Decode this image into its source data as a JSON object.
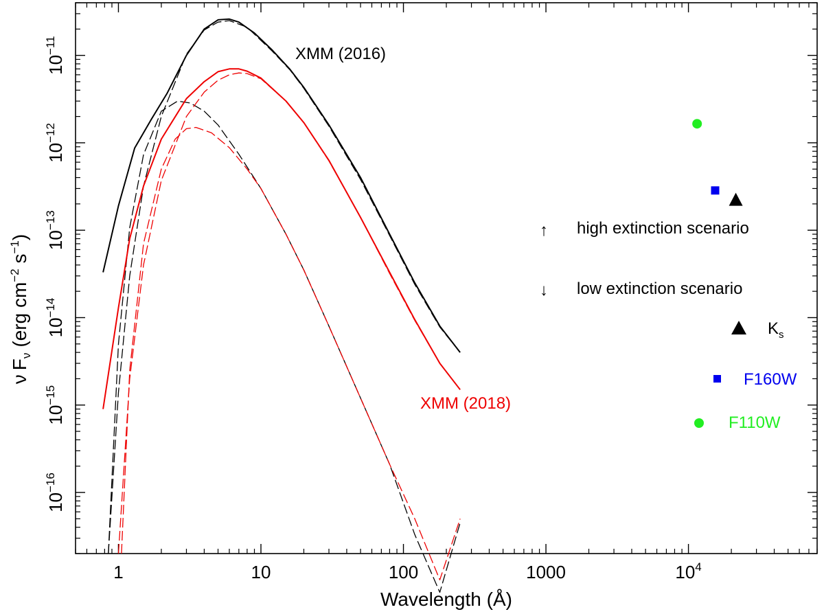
{
  "chart_data": {
    "type": "line",
    "xlabel": "Wavelength (Å)",
    "ylabel_parts": {
      "nu": "ν",
      "F": "F",
      "sub_nu": "ν",
      "open": "(erg cm",
      "exp1": "−2",
      "mid": " s",
      "exp2": "−1",
      "close": ")"
    },
    "x_scale": "log",
    "y_scale": "log",
    "xlim": [
      0.5,
      80000
    ],
    "ylim": [
      2e-17,
      4e-11
    ],
    "x_ticks": [
      {
        "value": 1,
        "label": "1"
      },
      {
        "value": 10,
        "label": "10"
      },
      {
        "value": 100,
        "label": "100"
      },
      {
        "value": 1000,
        "label": "1000"
      },
      {
        "value": 10000,
        "label_base": "10",
        "label_exp": "4"
      }
    ],
    "y_ticks": [
      {
        "value": 1e-16,
        "label_base": "10",
        "label_exp": "−16"
      },
      {
        "value": 1e-15,
        "label_base": "10",
        "label_exp": "−15"
      },
      {
        "value": 1e-14,
        "label_base": "10",
        "label_exp": "−14"
      },
      {
        "value": 1e-13,
        "label_base": "10",
        "label_exp": "−13"
      },
      {
        "value": 1e-12,
        "label_base": "10",
        "label_exp": "−12"
      },
      {
        "value": 1e-11,
        "label_base": "10",
        "label_exp": "−11"
      }
    ],
    "grid": false,
    "series": [
      {
        "color": "#000000",
        "style": "solid",
        "x": [
          0.78,
          1.0,
          1.3,
          1.7,
          2.2,
          3.0,
          4.0,
          5.0,
          6.0,
          7.0,
          9.0,
          12.0,
          16.0,
          20.0,
          30.0,
          50.0,
          80.0,
          120.0,
          180.0,
          250.0
        ],
        "y": [
          3.3e-14,
          1.9e-13,
          8.7e-13,
          1.85e-12,
          3.7e-12,
          1e-11,
          2e-11,
          2.55e-11,
          2.6e-11,
          2.4e-11,
          1.8e-11,
          1.15e-11,
          6.9e-12,
          4.3e-12,
          1.6e-12,
          4e-13,
          9e-14,
          2.5e-14,
          8e-15,
          4e-15
        ]
      },
      {
        "color": "#000000",
        "style": "dash",
        "x": [
          0.85,
          1.0,
          1.2,
          1.5,
          2.0,
          3.0,
          4.0,
          5.0,
          6.0,
          8.0,
          12.0,
          16.0,
          20.0,
          30.0,
          50.0,
          80.0,
          120.0,
          180.0,
          250.0
        ],
        "y": [
          2e-17,
          1.4e-15,
          3e-14,
          3.2e-13,
          2e-12,
          1.03e-11,
          1.95e-11,
          2.4e-11,
          2.5e-11,
          2.1e-11,
          1.12e-11,
          6.8e-12,
          4.2e-12,
          1.55e-12,
          3.8e-13,
          8.7e-14,
          2.4e-14,
          7.8e-15,
          4e-15
        ]
      },
      {
        "color": "#000000",
        "style": "dash",
        "x": [
          0.85,
          1.0,
          1.2,
          1.5,
          2.0,
          2.6,
          3.2,
          4.0,
          5.0,
          7.0,
          10.0,
          15.0,
          20.0,
          30.0,
          50.0,
          80.0,
          120.0,
          180.0,
          250.0
        ],
        "y": [
          2e-17,
          5e-15,
          1.07e-13,
          7.3e-13,
          2.3e-12,
          3e-12,
          2.85e-12,
          2.3e-12,
          1.6e-12,
          7.4e-13,
          3e-13,
          9e-14,
          3.5e-14,
          8e-15,
          1.2e-15,
          2.1e-16,
          3.3e-17,
          7.2e-18,
          4.5e-17
        ]
      },
      {
        "color": "#ee0000",
        "style": "solid",
        "x": [
          0.78,
          1.0,
          1.2,
          1.5,
          2.0,
          3.0,
          4.0,
          5.0,
          6.0,
          7.0,
          8.0,
          10.0,
          15.0,
          20.0,
          30.0,
          50.0,
          80.0,
          120.0,
          180.0,
          250.0
        ],
        "y": [
          9e-16,
          1.3e-14,
          8e-14,
          3.2e-13,
          1.1e-12,
          3.2e-12,
          5e-12,
          6.5e-12,
          7e-12,
          7e-12,
          6.6e-12,
          5.5e-12,
          3e-12,
          1.7e-12,
          6.3e-13,
          1.4e-13,
          3.3e-14,
          9.5e-15,
          3e-15,
          1.5e-15
        ]
      },
      {
        "color": "#ee0000",
        "style": "dash",
        "x": [
          1.0,
          1.2,
          1.5,
          2.0,
          3.0,
          4.0,
          5.0,
          6.0,
          7.0,
          8.0,
          10.0,
          15.0,
          20.0,
          30.0,
          50.0,
          80.0,
          120.0,
          180.0,
          250.0
        ],
        "y": [
          2e-17,
          2e-15,
          4e-14,
          3.7e-13,
          2e-12,
          3.8e-12,
          5.2e-12,
          6e-12,
          6.3e-12,
          6.2e-12,
          5.4e-12,
          3e-12,
          1.7e-12,
          6.2e-13,
          1.4e-13,
          3.2e-14,
          9.3e-15,
          3e-15,
          1.5e-15
        ]
      },
      {
        "color": "#ee0000",
        "style": "dash",
        "x": [
          1.05,
          1.2,
          1.5,
          2.0,
          2.5,
          3.0,
          3.5,
          4.5,
          6.0,
          8.0,
          10.0,
          15.0,
          20.0,
          30.0,
          50.0,
          80.0,
          120.0,
          180.0,
          250.0
        ],
        "y": [
          2e-17,
          2.5e-15,
          7e-14,
          5e-13,
          1.1e-12,
          1.45e-12,
          1.5e-12,
          1.3e-12,
          8.8e-13,
          5e-13,
          3e-13,
          9e-14,
          3.5e-14,
          8e-15,
          1.2e-15,
          2.1e-16,
          5e-17,
          1e-17,
          5e-17
        ]
      }
    ],
    "points": [
      {
        "label": "F110W",
        "x": 11500,
        "y": 1.65e-12,
        "color": "#22ee22",
        "marker": "circle"
      },
      {
        "label": "F160W",
        "x": 15400,
        "y": 2.85e-13,
        "color": "#0000ee",
        "marker": "square"
      },
      {
        "label": "Ks",
        "x": 21500,
        "y": 2.2e-13,
        "color": "#000000",
        "marker": "triangle"
      }
    ],
    "annotations": {
      "xmm2016": {
        "text": "XMM (2016)",
        "color": "#000000"
      },
      "xmm2018": {
        "text": "XMM (2018)",
        "color": "#ee0000"
      },
      "high": {
        "arrow": "↑",
        "text": "high extinction scenario"
      },
      "low": {
        "arrow": "↓",
        "text": "low extinction scenario"
      }
    },
    "legend": {
      "placement": "bottom-right",
      "items": [
        {
          "label_main": "K",
          "label_sub": "s",
          "color": "#000000",
          "text_color": "#000000",
          "marker": "triangle"
        },
        {
          "label_main": "F160W",
          "color": "#0000ee",
          "text_color": "#0000ee",
          "marker": "square"
        },
        {
          "label_main": "F110W",
          "color": "#22ee22",
          "text_color": "#22ee22",
          "marker": "circle"
        }
      ]
    }
  }
}
